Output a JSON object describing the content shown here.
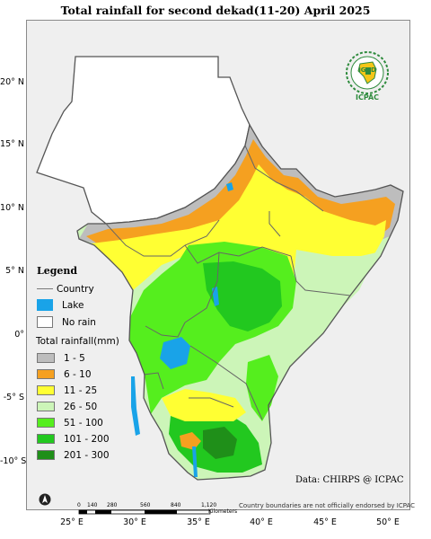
{
  "title": "Total rainfall  for  second  dekad(11-20) April 2025",
  "lat_ticks": [
    {
      "label": "20° N",
      "lat": 20
    },
    {
      "label": "15° N",
      "lat": 15
    },
    {
      "label": "10° N",
      "lat": 10
    },
    {
      "label": "5° N",
      "lat": 5
    },
    {
      "label": "0°",
      "lat": 0
    },
    {
      "label": "-5° S",
      "lat": -5
    },
    {
      "label": "-10° S",
      "lat": -10
    }
  ],
  "lon_ticks": [
    {
      "label": "25° E",
      "lon": 25
    },
    {
      "label": "30° E",
      "lon": 30
    },
    {
      "label": "35° E",
      "lon": 35
    },
    {
      "label": "40° E",
      "lon": 40
    },
    {
      "label": "45° E",
      "lon": 45
    },
    {
      "label": "50° E",
      "lon": 50
    }
  ],
  "legend": {
    "title": "Legend",
    "country": "Country",
    "lake": "Lake",
    "no_rain": "No rain",
    "rainfall_title": "Total rainfall(mm)",
    "classes": [
      {
        "label": "1 - 5",
        "color": "#bdbdbd"
      },
      {
        "label": "6 - 10",
        "color": "#f5a020"
      },
      {
        "label": "11 - 25",
        "color": "#ffff33"
      },
      {
        "label": "26 - 50",
        "color": "#ccf5b8"
      },
      {
        "label": "51 - 100",
        "color": "#55ee1e"
      },
      {
        "label": "101 - 200",
        "color": "#22c81f"
      },
      {
        "label": "201 - 300",
        "color": "#1f8f19"
      }
    ],
    "lake_color": "#19a3e8"
  },
  "logo": {
    "org": "IGAD",
    "center": "ICPAC"
  },
  "source": "Data: CHIRPS @ ICPAC",
  "disclaimer": "Country boundaries are not officially endorsed by ICPAC",
  "scale": {
    "ticks": [
      "0",
      "140",
      "280",
      "560",
      "840",
      "1,120"
    ],
    "unit": "Kilometers"
  }
}
